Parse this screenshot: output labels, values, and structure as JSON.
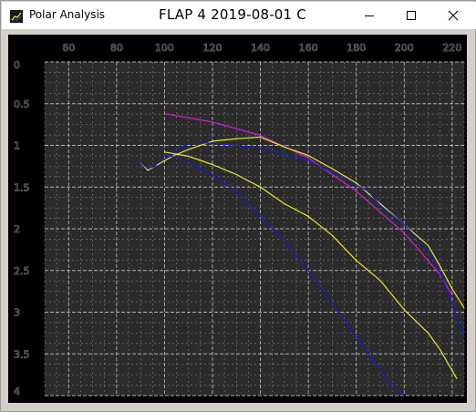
{
  "window": {
    "app_title": "Polar Analysis",
    "document_title": "FLAP 4 2019-08-01 C",
    "icon": "chart-app-icon",
    "controls": {
      "minimize_icon": "minimize-icon",
      "maximize_icon": "maximize-icon",
      "close_icon": "close-icon"
    }
  },
  "colors": {
    "frame_bg": "#000000",
    "plot_bg": "#2b2b2b",
    "grid": "#c8c8c8",
    "axis_text": "#2b2b2b",
    "magenta": "#d020d0",
    "yellow": "#e8e830",
    "blue": "#1a1ad0"
  },
  "chart_data": {
    "type": "line",
    "title": "",
    "xlabel": "",
    "ylabel": "",
    "xlim": [
      50,
      225
    ],
    "ylim": [
      0,
      4
    ],
    "y_inverted": true,
    "x_ticks": [
      60,
      80,
      100,
      120,
      140,
      160,
      180,
      200,
      220
    ],
    "x_tick_labels": [
      "60",
      "80",
      "100",
      "120",
      "140",
      "160",
      "180",
      "200",
      "220"
    ],
    "y_ticks": [
      0,
      0.5,
      1,
      1.5,
      2,
      2.5,
      3,
      3.5,
      4
    ],
    "y_tick_labels": [
      "0",
      "0.5",
      "1",
      "1.5",
      "2",
      "2.5",
      "3",
      "3.5",
      "4"
    ],
    "grid": true,
    "legend": "none",
    "series": [
      {
        "color": "#d020d0",
        "x": [
          100,
          120,
          140,
          160,
          180,
          200,
          215,
          220
        ],
        "y": [
          0.62,
          0.72,
          0.88,
          1.15,
          1.55,
          2.05,
          2.55,
          2.8
        ]
      },
      {
        "color": "#e8e830",
        "x": [
          90,
          93,
          96,
          99,
          104,
          110,
          120,
          130,
          140,
          150,
          160,
          170,
          180,
          190,
          200,
          210,
          215,
          220,
          225
        ],
        "y": [
          1.2,
          1.3,
          1.25,
          1.2,
          1.12,
          1.05,
          0.95,
          0.92,
          0.9,
          1.02,
          1.12,
          1.28,
          1.45,
          1.7,
          1.95,
          2.2,
          2.45,
          2.72,
          2.95
        ]
      },
      {
        "color": "#1a1ad0",
        "x": [
          90,
          93,
          96,
          99,
          104,
          110,
          120,
          140,
          160,
          175,
          185,
          190,
          200,
          210,
          215,
          220,
          225
        ],
        "y": [
          1.2,
          1.28,
          1.25,
          1.15,
          1.05,
          0.98,
          0.97,
          1.03,
          1.18,
          1.4,
          1.55,
          1.72,
          1.95,
          2.25,
          2.52,
          2.9,
          3.3
        ]
      },
      {
        "color": "#e8e830",
        "x": [
          100,
          110,
          120,
          130,
          140,
          150,
          160,
          170,
          180,
          190,
          200,
          210,
          215,
          222
        ],
        "y": [
          1.08,
          1.13,
          1.23,
          1.35,
          1.5,
          1.7,
          1.85,
          2.08,
          2.38,
          2.62,
          2.97,
          3.25,
          3.45,
          3.8
        ]
      },
      {
        "color": "#1a1ad0",
        "x": [
          100,
          110,
          120,
          130,
          140,
          150,
          160,
          170,
          180,
          190,
          195,
          200
        ],
        "y": [
          1.1,
          1.2,
          1.35,
          1.55,
          1.85,
          2.15,
          2.5,
          2.9,
          3.3,
          3.68,
          3.9,
          4.0
        ]
      }
    ]
  }
}
